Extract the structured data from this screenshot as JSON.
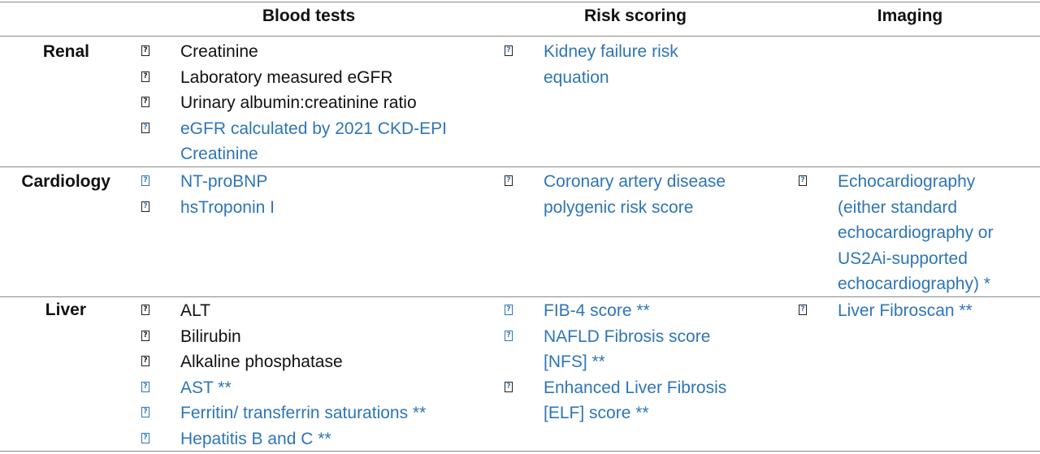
{
  "headers": {
    "blood_tests": "Blood tests",
    "risk_scoring": "Risk scoring",
    "imaging": "Imaging"
  },
  "colors": {
    "link_blue": "#2e75b6",
    "text_black": "#111111",
    "rule_gray": "#8a8a8a"
  },
  "bullet_glyph": "?",
  "rows": {
    "renal": {
      "label": "Renal",
      "blood_tests": [
        {
          "text": "Creatinine",
          "color": "black",
          "bullet": "black"
        },
        {
          "text": "Laboratory measured eGFR",
          "color": "black",
          "bullet": "black"
        },
        {
          "text": "Urinary albumin:creatinine ratio",
          "color": "black",
          "bullet": "black"
        },
        {
          "text": "eGFR calculated by 2021 CKD-EPI",
          "continuation": "Creatinine",
          "color": "blue",
          "bullet": "black"
        }
      ],
      "risk_scoring": [
        {
          "text": "Kidney failure risk",
          "continuation": "equation",
          "color": "blue",
          "bullet": "black"
        }
      ],
      "imaging": []
    },
    "cardiology": {
      "label": "Cardiology",
      "blood_tests": [
        {
          "text": "NT-proBNP",
          "color": "blue",
          "bullet": "blue"
        },
        {
          "text": "hsTroponin I",
          "color": "blue",
          "bullet": "black"
        }
      ],
      "risk_scoring": [
        {
          "text": "Coronary artery disease",
          "continuation": "polygenic risk score",
          "color": "blue",
          "bullet": "black"
        }
      ],
      "imaging": [
        {
          "text": "Echocardiography",
          "continuation_lines": [
            "(either standard",
            "echocardiography or",
            "US2Ai-supported",
            "echocardiography) *"
          ],
          "color": "blue",
          "bullet": "black"
        }
      ]
    },
    "liver": {
      "label": "Liver",
      "blood_tests": [
        {
          "text": "ALT",
          "color": "black",
          "bullet": "black"
        },
        {
          "text": "Bilirubin",
          "color": "black",
          "bullet": "black"
        },
        {
          "text": "Alkaline phosphatase",
          "color": "black",
          "bullet": "black"
        },
        {
          "text": "AST **",
          "color": "blue",
          "bullet": "blue"
        },
        {
          "text": "Ferritin/ transferrin saturations **",
          "color": "blue",
          "bullet": "blue"
        },
        {
          "text": "Hepatitis B and C **",
          "color": "blue",
          "bullet": "blue"
        }
      ],
      "risk_scoring": [
        {
          "text": "FIB-4 score **",
          "color": "blue",
          "bullet": "blue"
        },
        {
          "text": "NAFLD Fibrosis score",
          "continuation": "[NFS] **",
          "color": "blue",
          "bullet": "blue"
        },
        {
          "text": "Enhanced Liver Fibrosis",
          "continuation": "[ELF] score **",
          "color": "blue",
          "bullet": "black"
        }
      ],
      "imaging": [
        {
          "text": "Liver Fibroscan **",
          "color": "blue",
          "bullet": "black"
        }
      ]
    }
  }
}
